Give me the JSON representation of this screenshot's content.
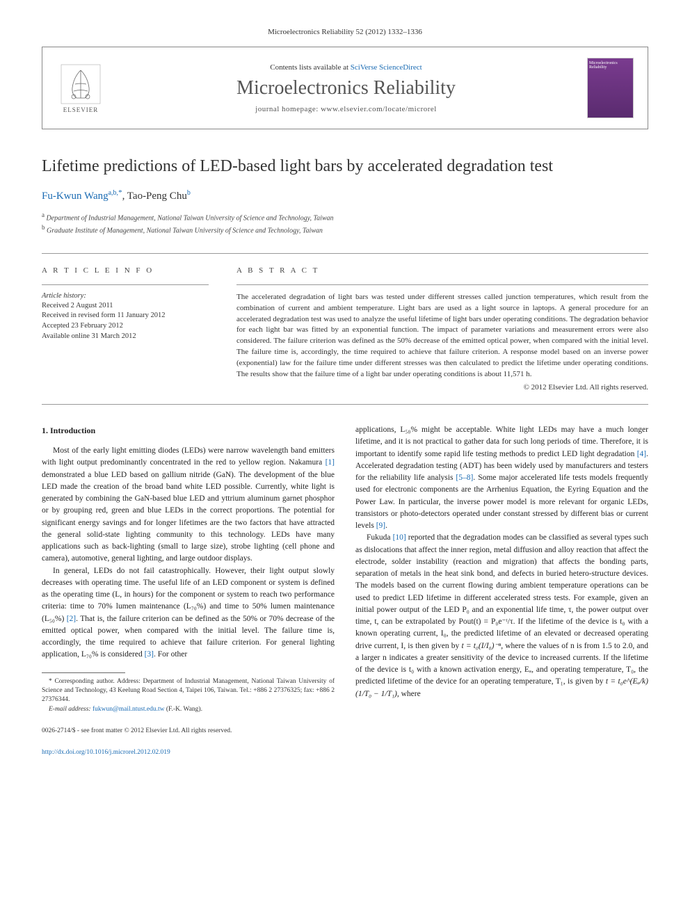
{
  "journal_ref": "Microelectronics Reliability 52 (2012) 1332–1336",
  "header": {
    "contents_prefix": "Contents lists available at ",
    "contents_link": "SciVerse ScienceDirect",
    "journal_name": "Microelectronics Reliability",
    "homepage_prefix": "journal homepage: ",
    "homepage_url": "www.elsevier.com/locate/microrel",
    "publisher": "ELSEVIER",
    "cover_text": "Microelectronics Reliability"
  },
  "article": {
    "title": "Lifetime predictions of LED-based light bars by accelerated degradation test",
    "authors_html": "Fu-Kwun Wang",
    "author1_sup": "a,b,",
    "author1_star": "*",
    "author2": ", Tao-Peng Chu",
    "author2_sup": "b",
    "affiliations": {
      "a": "Department of Industrial Management, National Taiwan University of Science and Technology, Taiwan",
      "b": "Graduate Institute of Management, National Taiwan University of Science and Technology, Taiwan"
    }
  },
  "info": {
    "heading": "A R T I C L E   I N F O",
    "history_label": "Article history:",
    "received": "Received 2 August 2011",
    "revised": "Received in revised form 11 January 2012",
    "accepted": "Accepted 23 February 2012",
    "online": "Available online 31 March 2012"
  },
  "abstract": {
    "heading": "A B S T R A C T",
    "text": "The accelerated degradation of light bars was tested under different stresses called junction temperatures, which result from the combination of current and ambient temperature. Light bars are used as a light source in laptops. A general procedure for an accelerated degradation test was used to analyze the useful lifetime of light bars under operating conditions. The degradation behavior for each light bar was fitted by an exponential function. The impact of parameter variations and measurement errors were also considered. The failure criterion was defined as the 50% decrease of the emitted optical power, when compared with the initial level. The failure time is, accordingly, the time required to achieve that failure criterion. A response model based on an inverse power (exponential) law for the failure time under different stresses was then calculated to predict the lifetime under operating conditions. The results show that the failure time of a light bar under operating conditions is about 11,571 h.",
    "copyright": "© 2012 Elsevier Ltd. All rights reserved."
  },
  "section1": {
    "heading": "1. Introduction",
    "p1": "Most of the early light emitting diodes (LEDs) were narrow wavelength band emitters with light output predominantly concentrated in the red to yellow region. Nakamura [1] demonstrated a blue LED based on gallium nitride (GaN). The development of the blue LED made the creation of the broad band white LED possible. Currently, white light is generated by combining the GaN-based blue LED and yttrium aluminum garnet phosphor or by grouping red, green and blue LEDs in the correct proportions. The potential for significant energy savings and for longer lifetimes are the two factors that have attracted the general solid-state lighting community to this technology. LEDs have many applications such as back-lighting (small to large size), strobe lighting (cell phone and camera), automotive, general lighting, and large outdoor displays.",
    "p2": "In general, LEDs do not fail catastrophically. However, their light output slowly decreases with operating time. The useful life of an LED component or system is defined as the operating time (L, in hours) for the component or system to reach two performance criteria: time to 70% lumen maintenance (L₇₀%) and time to 50% lumen maintenance (L₅₀%) [2]. That is, the failure criterion can be defined as the 50% or 70% decrease of the emitted optical power, when compared with the initial level. The failure time is, accordingly, the time required to achieve that failure criterion. For general lighting application, L₇₀% is considered [3]. For other",
    "p3": "applications, L₅₀% might be acceptable. White light LEDs may have a much longer lifetime, and it is not practical to gather data for such long periods of time. Therefore, it is important to identify some rapid life testing methods to predict LED light degradation [4]. Accelerated degradation testing (ADT) has been widely used by manufacturers and testers for the reliability life analysis [5–8]. Some major accelerated life tests models frequently used for electronic components are the Arrhenius Equation, the Eyring Equation and the Power Law. In particular, the inverse power model is more relevant for organic LEDs, transistors or photo-detectors operated under constant stressed by different bias or current levels [9].",
    "p4a": "Fukuda [10] reported that the degradation modes can be classified as several types such as dislocations that affect the inner region, metal diffusion and alloy reaction that affect the electrode, solder instability (reaction and migration) that affects the bonding parts, separation of metals in the heat sink bond, and defects in buried hetero-structure devices. The models based on the current flowing during ambient temperature operations can be used to predict LED lifetime in different accelerated stress tests. For example, given an initial power output of the LED P₀ and an exponential life time, τ, the power output over time, t, can be extrapolated by Pout(t) = P₀e⁻ᵗ/τ. If the lifetime of the device is t₀ with a known operating current, I₀, the predicted lifetime of an elevated or decreased operating drive current, I, is then given by ",
    "p4b": ", where the values of n is from 1.5 to 2.0, and a larger n indicates a greater sensitivity of the device to increased currents. If the lifetime of the device is t₀ with a known activation energy, Eₐ, and operating temperature, T₀, the predicted lifetime of the device for an operating temperature, T₁, is given by ",
    "p4c": ", where"
  },
  "footnote": {
    "corr": "* Corresponding author. Address: Department of Industrial Management, National Taiwan University of Science and Technology, 43 Keelung Road Section 4, Taipei 106, Taiwan. Tel.: +886 2 27376325; fax: +886 2 27376344.",
    "email_label": "E-mail address:",
    "email": "fukwun@mail.ntust.edu.tw",
    "email_who": "(F.-K. Wang)."
  },
  "footer": {
    "issn": "0026-2714/$ - see front matter © 2012 Elsevier Ltd. All rights reserved.",
    "doi": "http://dx.doi.org/10.1016/j.microrel.2012.02.019"
  },
  "colors": {
    "link": "#1a6bb3",
    "text": "#333333",
    "border": "#888888"
  }
}
